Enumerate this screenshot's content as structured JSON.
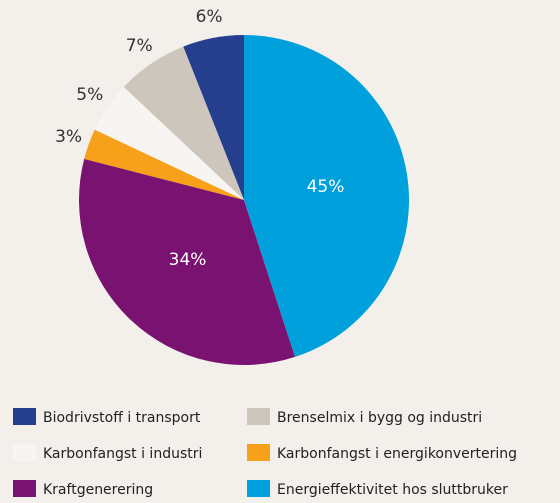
{
  "chart_data": {
    "type": "pie",
    "categories": [
      "Biodrivstoff i transport",
      "Brenselmix i bygg og industri",
      "Karbonfangst i industri",
      "Karbonfangst i energikonvertering",
      "Kraftgenerering",
      "Energieffektivitet hos sluttbruker"
    ],
    "values": [
      6,
      7,
      5,
      3,
      34,
      45
    ],
    "value_labels": [
      "6%",
      "7%",
      "5%",
      "3%",
      "34%",
      "45%"
    ],
    "colors": [
      "#253f8e",
      "#cdc6bc",
      "#f7f5f2",
      "#f7a11a",
      "#7a1272",
      "#00a0dc"
    ],
    "direction": "counterclockwise",
    "start": "top"
  }
}
